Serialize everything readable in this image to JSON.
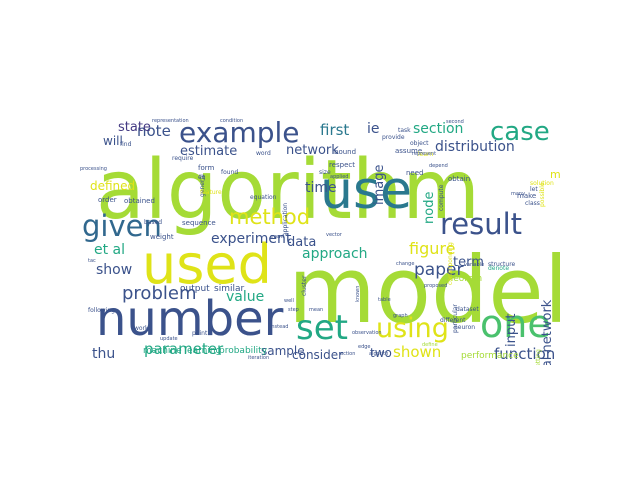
{
  "palette": {
    "lime": "#a5db36",
    "yellow": "#dfe318",
    "green": "#4ac16d",
    "teal": "#22a884",
    "cyan": "#1fa188",
    "blue": "#2a788e",
    "slate": "#31688e",
    "navy": "#3b528b",
    "indigo": "#443a83",
    "purple": "#440154"
  },
  "words": [
    {
      "text": "algorithm",
      "color": "lime"
    },
    {
      "text": "model",
      "color": "lime"
    },
    {
      "text": "number",
      "color": "navy"
    },
    {
      "text": "used",
      "color": "yellow"
    },
    {
      "text": "use",
      "color": "blue"
    },
    {
      "text": "set",
      "color": "teal"
    },
    {
      "text": "one",
      "color": "green"
    },
    {
      "text": "using",
      "color": "yellow"
    },
    {
      "text": "given",
      "color": "slate"
    },
    {
      "text": "result",
      "color": "navy"
    },
    {
      "text": "example",
      "color": "navy"
    },
    {
      "text": "case",
      "color": "teal"
    },
    {
      "text": "method",
      "color": "yellow"
    },
    {
      "text": "problem",
      "color": "navy"
    },
    {
      "text": "paper",
      "color": "navy"
    },
    {
      "text": "figure",
      "color": "yellow"
    },
    {
      "text": "shown",
      "color": "yellow"
    },
    {
      "text": "function",
      "color": "navy"
    },
    {
      "text": "parameter",
      "color": "teal"
    },
    {
      "text": "network",
      "color": "navy"
    },
    {
      "text": "neural network",
      "color": "navy"
    },
    {
      "text": "distribution",
      "color": "navy"
    },
    {
      "text": "section",
      "color": "teal"
    },
    {
      "text": "first",
      "color": "blue"
    },
    {
      "text": "ie",
      "color": "navy"
    },
    {
      "text": "note",
      "color": "navy"
    },
    {
      "text": "state",
      "color": "indigo"
    },
    {
      "text": "will",
      "color": "navy"
    },
    {
      "text": "estimate",
      "color": "navy"
    },
    {
      "text": "time",
      "color": "navy"
    },
    {
      "text": "data",
      "color": "navy"
    },
    {
      "text": "approach",
      "color": "teal"
    },
    {
      "text": "experiment",
      "color": "navy"
    },
    {
      "text": "et al",
      "color": "teal"
    },
    {
      "text": "show",
      "color": "navy"
    },
    {
      "text": "value",
      "color": "teal"
    },
    {
      "text": "thu",
      "color": "navy"
    },
    {
      "text": "sample",
      "color": "navy"
    },
    {
      "text": "consider",
      "color": "navy"
    },
    {
      "text": "two",
      "color": "navy"
    },
    {
      "text": "term",
      "color": "navy"
    },
    {
      "text": "input",
      "color": "navy"
    },
    {
      "text": "node",
      "color": "teal"
    },
    {
      "text": "image",
      "color": "navy"
    },
    {
      "text": "defined",
      "color": "yellow"
    },
    {
      "text": "may",
      "color": "yellow"
    },
    {
      "text": "performance",
      "color": "lime"
    },
    {
      "text": "theorem",
      "color": "lime"
    },
    {
      "text": "machine learning",
      "color": "teal"
    },
    {
      "text": "probability",
      "color": "teal"
    },
    {
      "text": "output",
      "color": "navy"
    },
    {
      "text": "similar",
      "color": "navy"
    },
    {
      "text": "sequence",
      "color": "navy"
    },
    {
      "text": "equation",
      "color": "navy"
    },
    {
      "text": "application",
      "color": "navy"
    },
    {
      "text": "bound",
      "color": "navy"
    },
    {
      "text": "respect",
      "color": "navy"
    },
    {
      "text": "need",
      "color": "navy"
    },
    {
      "text": "size",
      "color": "navy"
    },
    {
      "text": "obtained",
      "color": "navy"
    },
    {
      "text": "order",
      "color": "navy"
    },
    {
      "text": "weight",
      "color": "navy"
    },
    {
      "text": "based",
      "color": "navy"
    },
    {
      "text": "find",
      "color": "navy"
    },
    {
      "text": "form",
      "color": "navy"
    },
    {
      "text": "eq",
      "color": "navy"
    },
    {
      "text": "require",
      "color": "navy"
    },
    {
      "text": "word",
      "color": "navy"
    },
    {
      "text": "general",
      "color": "navy"
    },
    {
      "text": "feature",
      "color": "yellow"
    },
    {
      "text": "assume",
      "color": "navy"
    },
    {
      "text": "task",
      "color": "navy"
    },
    {
      "text": "object",
      "color": "navy"
    },
    {
      "text": "learn",
      "color": "yellow"
    },
    {
      "text": "obtain",
      "color": "navy"
    },
    {
      "text": "compute",
      "color": "navy"
    },
    {
      "text": "corresponding",
      "color": "yellow"
    },
    {
      "text": "possible",
      "color": "yellow"
    },
    {
      "text": "solution",
      "color": "yellow"
    },
    {
      "text": "let",
      "color": "navy"
    },
    {
      "text": "make",
      "color": "navy"
    },
    {
      "text": "class",
      "color": "navy"
    },
    {
      "text": "denote",
      "color": "teal"
    },
    {
      "text": "particular",
      "color": "navy"
    },
    {
      "text": "dataset",
      "color": "navy"
    },
    {
      "text": "neuron",
      "color": "navy"
    },
    {
      "text": "different",
      "color": "navy"
    },
    {
      "text": "setting",
      "color": "lime"
    },
    {
      "text": "cluster",
      "color": "navy"
    },
    {
      "text": "following",
      "color": "navy"
    },
    {
      "text": "work",
      "color": "navy"
    },
    {
      "text": "point",
      "color": "navy"
    },
    {
      "text": "found",
      "color": "navy"
    },
    {
      "text": "provide",
      "color": "navy"
    },
    {
      "text": "condition",
      "color": "navy"
    },
    {
      "text": "representation",
      "color": "navy"
    },
    {
      "text": "processing",
      "color": "navy"
    },
    {
      "text": "structure",
      "color": "navy"
    },
    {
      "text": "variable",
      "color": "navy"
    },
    {
      "text": "proposed",
      "color": "navy"
    },
    {
      "text": "represent",
      "color": "navy"
    },
    {
      "text": "observation",
      "color": "navy"
    },
    {
      "text": "change",
      "color": "navy"
    },
    {
      "text": "graph",
      "color": "navy"
    },
    {
      "text": "define",
      "color": "lime"
    },
    {
      "text": "update",
      "color": "navy"
    },
    {
      "text": "instead",
      "color": "navy"
    },
    {
      "text": "step",
      "color": "navy"
    },
    {
      "text": "mean",
      "color": "navy"
    },
    {
      "text": "well",
      "color": "navy"
    },
    {
      "text": "tac",
      "color": "navy"
    },
    {
      "text": "applied",
      "color": "navy"
    },
    {
      "text": "depend",
      "color": "navy"
    },
    {
      "text": "known",
      "color": "navy"
    },
    {
      "text": "table",
      "color": "navy"
    },
    {
      "text": "edge",
      "color": "navy"
    },
    {
      "text": "action",
      "color": "navy"
    },
    {
      "text": "vector",
      "color": "navy"
    },
    {
      "text": "second",
      "color": "navy"
    },
    {
      "text": "many",
      "color": "navy"
    },
    {
      "text": "algorith",
      "color": "navy"
    },
    {
      "text": "iteration",
      "color": "navy"
    },
    {
      "text": "event",
      "color": "navy"
    }
  ]
}
